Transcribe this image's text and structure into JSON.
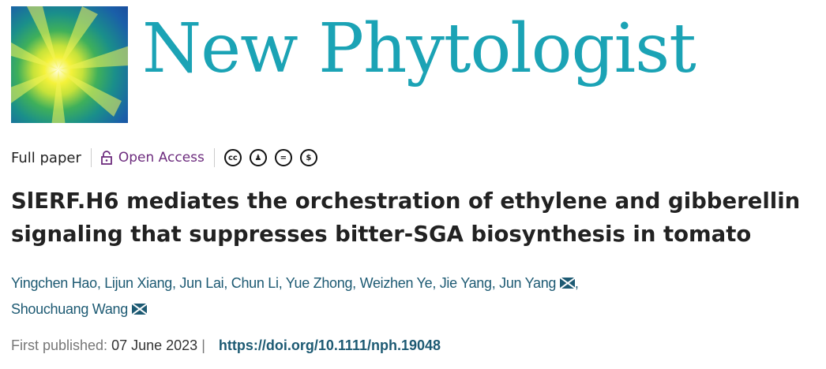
{
  "journal": {
    "name": "New Phytologist"
  },
  "meta": {
    "type": "Full paper",
    "access": "Open Access",
    "license_icons": [
      "cc-icon",
      "by-icon",
      "nd-icon",
      "nc-icon"
    ]
  },
  "article": {
    "title": "SlERF.H6 mediates the orchestration of ethylene and gibberellin signaling that suppresses bitter-SGA biosynthesis in tomato"
  },
  "authors": [
    "Yingchen Hao",
    "Lijun Xiang",
    "Jun Lai",
    "Chun Li",
    "Yue Zhong",
    "Weizhen Ye",
    "Jie Yang",
    "Jun Yang",
    "Shouchuang Wang"
  ],
  "publication": {
    "label": "First published:",
    "date": "07 June 2023",
    "separator": "|",
    "doi": "https://doi.org/10.1111/nph.19048"
  },
  "colors": {
    "brand": "#1ba3b5",
    "open_access": "#6d2c7e",
    "link": "#1d5a73"
  }
}
